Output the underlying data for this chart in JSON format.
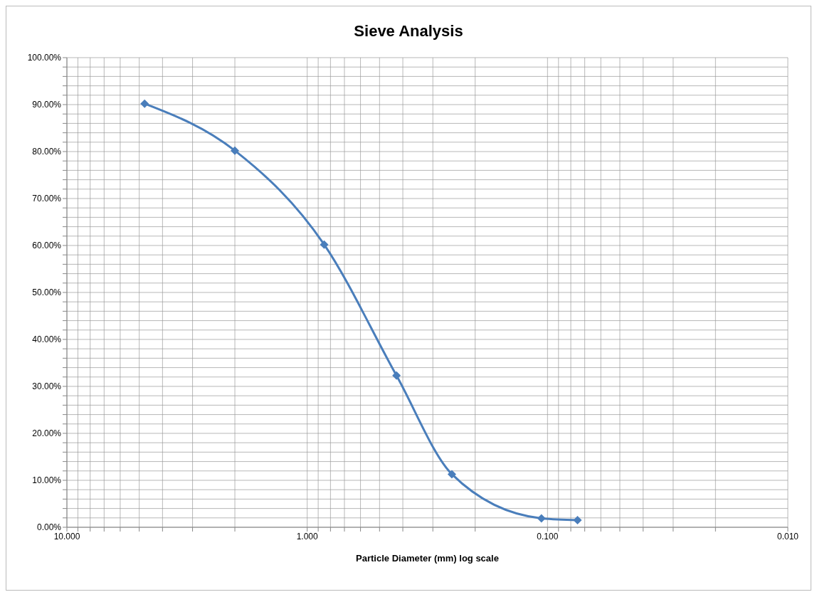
{
  "chart_data": {
    "type": "line",
    "title": "Sieve Analysis",
    "xlabel": "Particle Diameter (mm) log scale",
    "x": [
      4.75,
      2.0,
      0.85,
      0.425,
      0.25,
      0.106,
      0.075
    ],
    "series": [
      {
        "color": "#4a7ebb",
        "values": [
          90.2,
          80.2,
          60.2,
          32.3,
          11.3,
          1.9,
          1.5
        ]
      }
    ],
    "log": "x",
    "xlim": [
      10,
      0.01
    ],
    "xticks": [
      {
        "value": 10,
        "label": "10.000"
      },
      {
        "value": 9,
        "label": null
      },
      {
        "value": 8,
        "label": null
      },
      {
        "value": 7,
        "label": null
      },
      {
        "value": 6,
        "label": null
      },
      {
        "value": 5,
        "label": null
      },
      {
        "value": 4,
        "label": null
      },
      {
        "value": 3,
        "label": null
      },
      {
        "value": 2,
        "label": null
      },
      {
        "value": 1,
        "label": "1.000"
      },
      {
        "value": 0.9,
        "label": null
      },
      {
        "value": 0.8,
        "label": null
      },
      {
        "value": 0.7,
        "label": null
      },
      {
        "value": 0.6,
        "label": null
      },
      {
        "value": 0.5,
        "label": null
      },
      {
        "value": 0.4,
        "label": null
      },
      {
        "value": 0.3,
        "label": null
      },
      {
        "value": 0.2,
        "label": null
      },
      {
        "value": 0.1,
        "label": "0.100"
      },
      {
        "value": 0.09,
        "label": null
      },
      {
        "value": 0.08,
        "label": null
      },
      {
        "value": 0.07,
        "label": null
      },
      {
        "value": 0.06,
        "label": null
      },
      {
        "value": 0.05,
        "label": null
      },
      {
        "value": 0.04,
        "label": null
      },
      {
        "value": 0.03,
        "label": null
      },
      {
        "value": 0.02,
        "label": null
      },
      {
        "value": 0.01,
        "label": "0.010"
      }
    ],
    "ylim": [
      0,
      100
    ],
    "yticks": [
      {
        "value": 0,
        "label": "0.00%"
      },
      {
        "value": 2,
        "label": null
      },
      {
        "value": 4,
        "label": null
      },
      {
        "value": 6,
        "label": null
      },
      {
        "value": 8,
        "label": null
      },
      {
        "value": 10,
        "label": "10.00%"
      },
      {
        "value": 12,
        "label": null
      },
      {
        "value": 14,
        "label": null
      },
      {
        "value": 16,
        "label": null
      },
      {
        "value": 18,
        "label": null
      },
      {
        "value": 20,
        "label": "20.00%"
      },
      {
        "value": 22,
        "label": null
      },
      {
        "value": 24,
        "label": null
      },
      {
        "value": 26,
        "label": null
      },
      {
        "value": 28,
        "label": null
      },
      {
        "value": 30,
        "label": "30.00%"
      },
      {
        "value": 32,
        "label": null
      },
      {
        "value": 34,
        "label": null
      },
      {
        "value": 36,
        "label": null
      },
      {
        "value": 38,
        "label": null
      },
      {
        "value": 40,
        "label": "40.00%"
      },
      {
        "value": 42,
        "label": null
      },
      {
        "value": 44,
        "label": null
      },
      {
        "value": 46,
        "label": null
      },
      {
        "value": 48,
        "label": null
      },
      {
        "value": 50,
        "label": "50.00%"
      },
      {
        "value": 52,
        "label": null
      },
      {
        "value": 54,
        "label": null
      },
      {
        "value": 56,
        "label": null
      },
      {
        "value": 58,
        "label": null
      },
      {
        "value": 60,
        "label": "60.00%"
      },
      {
        "value": 62,
        "label": null
      },
      {
        "value": 64,
        "label": null
      },
      {
        "value": 66,
        "label": null
      },
      {
        "value": 68,
        "label": null
      },
      {
        "value": 70,
        "label": "70.00%"
      },
      {
        "value": 72,
        "label": null
      },
      {
        "value": 74,
        "label": null
      },
      {
        "value": 76,
        "label": null
      },
      {
        "value": 78,
        "label": null
      },
      {
        "value": 80,
        "label": "80.00%"
      },
      {
        "value": 82,
        "label": null
      },
      {
        "value": 84,
        "label": null
      },
      {
        "value": 86,
        "label": null
      },
      {
        "value": 88,
        "label": null
      },
      {
        "value": 90,
        "label": "90.00%"
      },
      {
        "value": 92,
        "label": null
      },
      {
        "value": 94,
        "label": null
      },
      {
        "value": 96,
        "label": null
      },
      {
        "value": 98,
        "label": null
      },
      {
        "value": 100,
        "label": "100.00%"
      }
    ],
    "grid": true,
    "marker": "diamond",
    "line_style": "solid",
    "legend": false
  }
}
